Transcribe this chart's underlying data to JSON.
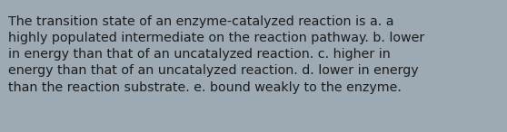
{
  "text_line1": "The transition state of an enzyme-catalyzed reaction is a. a",
  "text_line2": "highly populated intermediate on the reaction pathway. b. lower",
  "text_line3": "in energy than that of an uncatalyzed reaction. c. higher in",
  "text_line4": "energy than that of an uncatalyzed reaction. d. lower in energy",
  "text_line5": "than the reaction substrate. e. bound weakly to the enzyme.",
  "background_color": "#9daab4",
  "text_color": "#1c1c1c",
  "font_size": 10.3,
  "fig_width": 5.58,
  "fig_height": 1.46,
  "dpi": 100
}
